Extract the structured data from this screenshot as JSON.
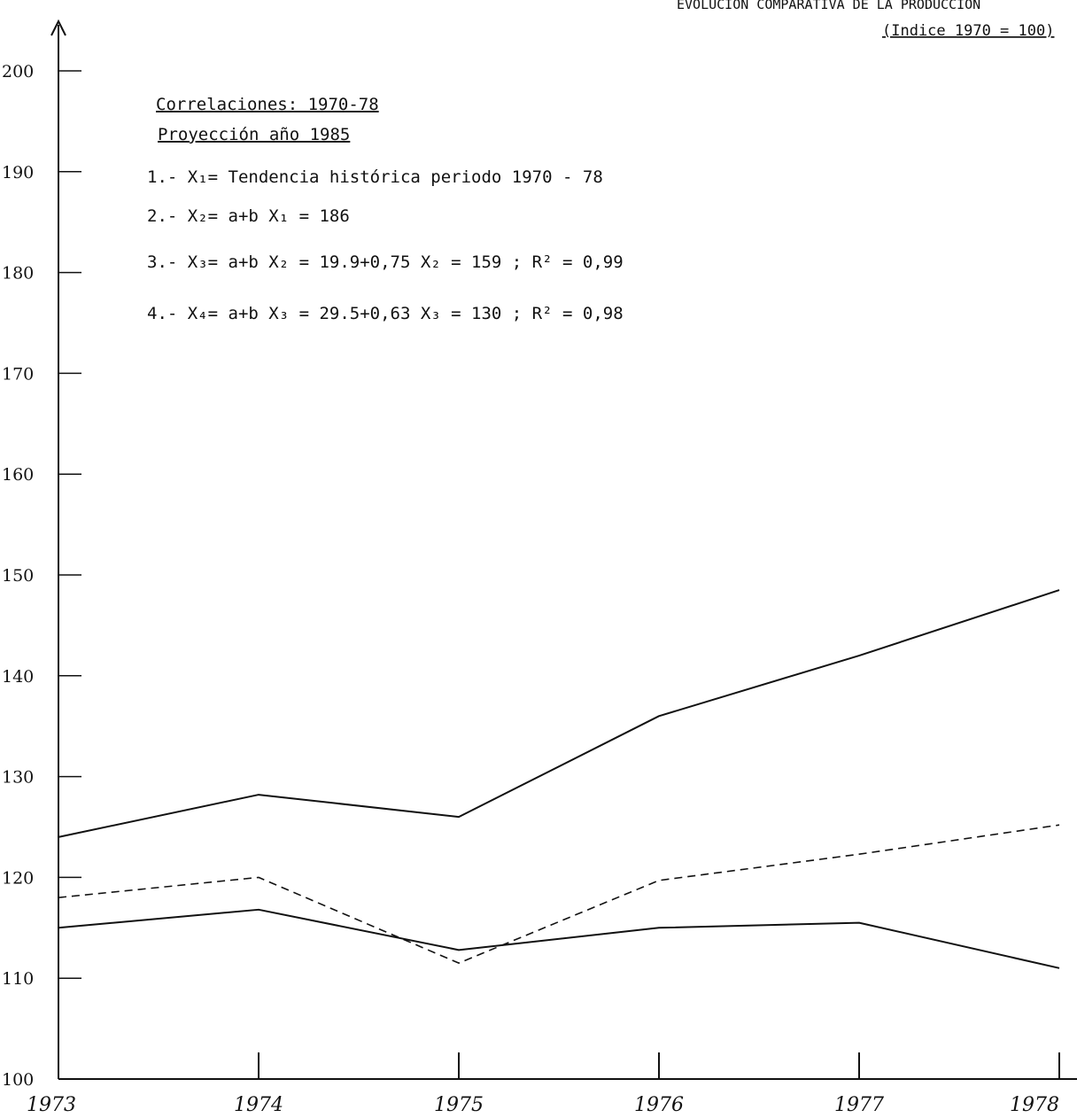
{
  "chart_data": {
    "type": "line",
    "title": "EVOLUCION COMPARATIVA DE LA PRODUCCION",
    "subtitle": "(Indice 1970 = 100)",
    "xlabel": "",
    "ylabel": "",
    "x": [
      "1973",
      "1974",
      "1975",
      "1976",
      "1977",
      "1978"
    ],
    "ylim": [
      100,
      200
    ],
    "yticks": [
      100,
      110,
      120,
      130,
      140,
      150,
      160,
      170,
      180,
      190,
      200
    ],
    "grid": false,
    "series": [
      {
        "style": "solid",
        "values": [
          124,
          128.2,
          126,
          136,
          142,
          148.5
        ]
      },
      {
        "style": "dashed",
        "values": [
          118,
          120,
          111.5,
          119.7,
          122.3,
          125.2
        ]
      },
      {
        "style": "solid",
        "values": [
          115,
          116.8,
          112.8,
          115,
          115.5,
          111
        ]
      }
    ],
    "annotations": {
      "heading1": "Correlaciones: 1970-78",
      "heading2": "Proyección año 1985",
      "line1": "1.- X₁= Tendencia histórica periodo 1970 - 78",
      "line2": "2.- X₂= a+b X₁ = 186",
      "line3": "3.- X₃= a+b X₂ = 19.9+0,75 X₂ = 159 ; R² = 0,99",
      "line4": "4.- X₄= a+b X₃ = 29.5+0,63 X₃ = 130 ; R² = 0,98"
    }
  }
}
